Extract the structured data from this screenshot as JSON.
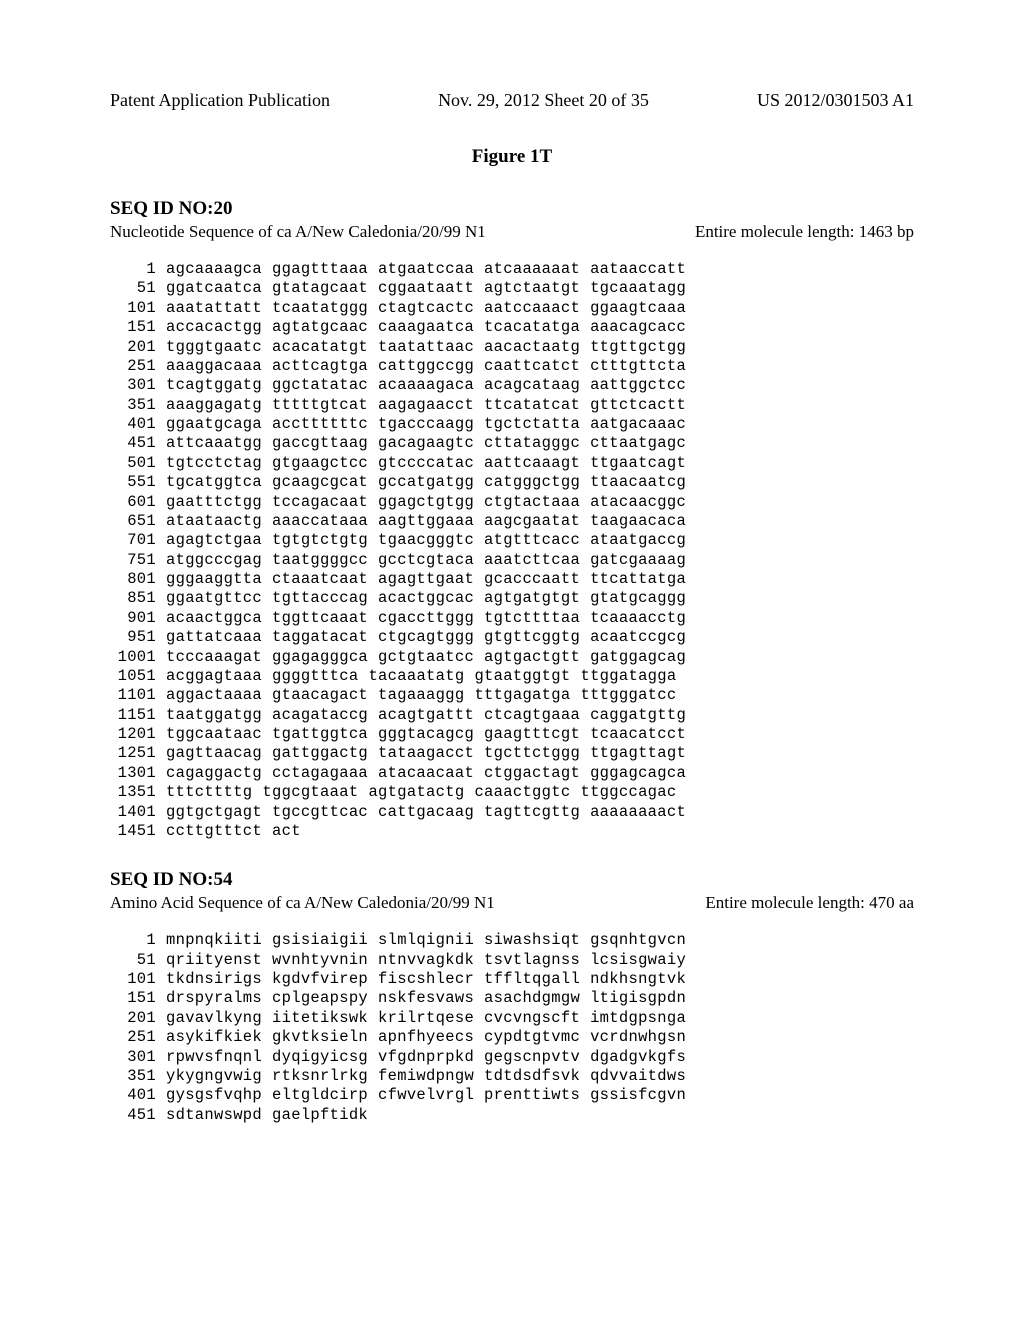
{
  "header": {
    "left": "Patent Application Publication",
    "mid": "Nov. 29, 2012  Sheet 20 of 35",
    "right": "US 2012/0301503 A1"
  },
  "figure_title": "Figure 1T",
  "seq1": {
    "id_header": "SEQ ID NO:20",
    "subheader_left": "Nucleotide Sequence of ca A/New Caledonia/20/99 N1",
    "subheader_right": "Entire molecule length: 1463 bp",
    "lines": [
      {
        "n": "1",
        "c": [
          "agcaaaagca",
          "ggagtttaaa",
          "atgaatccaa",
          "atcaaaaaat",
          "aataaccatt"
        ]
      },
      {
        "n": "51",
        "c": [
          "ggatcaatca",
          "gtatagcaat",
          "cggaataatt",
          "agtctaatgt",
          "tgcaaatagg"
        ]
      },
      {
        "n": "101",
        "c": [
          "aaatattatt",
          "tcaatatggg",
          "ctagtcactc",
          "aatccaaact",
          "ggaagtcaaa"
        ]
      },
      {
        "n": "151",
        "c": [
          "accacactgg",
          "agtatgcaac",
          "caaagaatca",
          "tcacatatga",
          "aaacagcacc"
        ]
      },
      {
        "n": "201",
        "c": [
          "tgggtgaatc",
          "acacatatgt",
          "taatattaac",
          "aacactaatg",
          "ttgttgctgg"
        ]
      },
      {
        "n": "251",
        "c": [
          "aaaggacaaa",
          "acttcagtga",
          "cattggccgg",
          "caattcatct",
          "ctttgttcta"
        ]
      },
      {
        "n": "301",
        "c": [
          "tcagtggatg",
          "ggctatatac",
          "acaaaagaca",
          "acagcataag",
          "aattggctcc"
        ]
      },
      {
        "n": "351",
        "c": [
          "aaaggagatg",
          "tttttgtcat",
          "aagagaacct",
          "ttcatatcat",
          "gttctcactt"
        ]
      },
      {
        "n": "401",
        "c": [
          "ggaatgcaga",
          "accttttttc",
          "tgacccaagg",
          "tgctctatta",
          "aatgacaaac"
        ]
      },
      {
        "n": "451",
        "c": [
          "attcaaatgg",
          "gaccgttaag",
          "gacagaagtc",
          "cttatagggc",
          "cttaatgagc"
        ]
      },
      {
        "n": "501",
        "c": [
          "tgtcctctag",
          "gtgaagctcc",
          "gtccccatac",
          "aattcaaagt",
          "ttgaatcagt"
        ]
      },
      {
        "n": "551",
        "c": [
          "tgcatggtca",
          "gcaagcgcat",
          "gccatgatgg",
          "catgggctgg",
          "ttaacaatcg"
        ]
      },
      {
        "n": "601",
        "c": [
          "gaatttctgg",
          "tccagacaat",
          "ggagctgtgg",
          "ctgtactaaa",
          "atacaacggc"
        ]
      },
      {
        "n": "651",
        "c": [
          "ataataactg",
          "aaaccataaa",
          "aagttggaaa",
          "aagcgaatat",
          "taagaacaca"
        ]
      },
      {
        "n": "701",
        "c": [
          "agagtctgaa",
          "tgtgtctgtg",
          "tgaacgggtc",
          "atgtttcacc",
          "ataatgaccg"
        ]
      },
      {
        "n": "751",
        "c": [
          "atggcccgag",
          "taatggggcc",
          "gcctcgtaca",
          "aaatcttcaa",
          "gatcgaaaag"
        ]
      },
      {
        "n": "801",
        "c": [
          "gggaaggtta",
          "ctaaatcaat",
          "agagttgaat",
          "gcacccaatt",
          "ttcattatga"
        ]
      },
      {
        "n": "851",
        "c": [
          "ggaatgttcc",
          "tgttacccag",
          "acactggcac",
          "agtgatgtgt",
          "gtatgcaggg"
        ]
      },
      {
        "n": "901",
        "c": [
          "acaactggca",
          "tggttcaaat",
          "cgaccttggg",
          "tgtcttttaa",
          "tcaaaacctg"
        ]
      },
      {
        "n": "951",
        "c": [
          "gattatcaaa",
          "taggatacat",
          "ctgcagtggg",
          "gtgttcggtg",
          "acaatccgcg"
        ]
      },
      {
        "n": "1001",
        "c": [
          "tcccaaagat",
          "ggagagggca",
          "gctgtaatcc",
          "agtgactgtt",
          "gatggagcag"
        ]
      },
      {
        "n": "1051",
        "c": [
          "acggagtaaa",
          "ggggtttca",
          "tacaaatatg",
          "gtaatggtgt",
          "ttggatagga"
        ]
      },
      {
        "n": "1101",
        "c": [
          "aggactaaaa",
          "gtaacagact",
          "tagaaaggg",
          "tttgagatga",
          "tttgggatcc"
        ]
      },
      {
        "n": "1151",
        "c": [
          "taatggatgg",
          "acagataccg",
          "acagtgattt",
          "ctcagtgaaa",
          "caggatgttg"
        ]
      },
      {
        "n": "1201",
        "c": [
          "tggcaataac",
          "tgattggtca",
          "gggtacagcg",
          "gaagtttcgt",
          "tcaacatcct"
        ]
      },
      {
        "n": "1251",
        "c": [
          "gagttaacag",
          "gattggactg",
          "tataagacct",
          "tgcttctggg",
          "ttgagttagt"
        ]
      },
      {
        "n": "1301",
        "c": [
          "cagaggactg",
          "cctagagaaa",
          "atacaacaat",
          "ctggactagt",
          "gggagcagca"
        ]
      },
      {
        "n": "1351",
        "c": [
          "tttcttttg",
          "tggcgtaaat",
          "agtgatactg",
          "caaactggtc",
          "ttggccagac"
        ]
      },
      {
        "n": "1401",
        "c": [
          "ggtgctgagt",
          "tgccgttcac",
          "cattgacaag",
          "tagttcgttg",
          "aaaaaaaact"
        ]
      },
      {
        "n": "1451",
        "c": [
          "ccttgtttct",
          "act",
          "",
          "",
          ""
        ]
      }
    ]
  },
  "seq2": {
    "id_header": "SEQ ID NO:54",
    "subheader_left": "Amino Acid Sequence of ca A/New Caledonia/20/99 N1",
    "subheader_right": "Entire molecule length: 470 aa",
    "lines": [
      {
        "n": "1",
        "c": [
          "mnpnqkiiti",
          "gsisiaigii",
          "slmlqignii",
          "siwashsiqt",
          "gsqnhtgvcn"
        ]
      },
      {
        "n": "51",
        "c": [
          "qriityenst",
          "wvnhtyvnin",
          "ntnvvagkdk",
          "tsvtlagnss",
          "lcsisgwaiy"
        ]
      },
      {
        "n": "101",
        "c": [
          "tkdnsirigs",
          "kgdvfvirep",
          "fiscshlecr",
          "tffltqgall",
          "ndkhsngtvk"
        ]
      },
      {
        "n": "151",
        "c": [
          "drspyralms",
          "cplgeapspy",
          "nskfesvaws",
          "asachdgmgw",
          "ltigisgpdn"
        ]
      },
      {
        "n": "201",
        "c": [
          "gavavlkyng",
          "iitetikswk",
          "krilrtqese",
          "cvcvngscft",
          "imtdgpsnga"
        ]
      },
      {
        "n": "251",
        "c": [
          "asykifkiek",
          "gkvtksieln",
          "apnfhyeecs",
          "cypdtgtvmc",
          "vcrdnwhgsn"
        ]
      },
      {
        "n": "301",
        "c": [
          "rpwvsfnqnl",
          "dyqigyicsg",
          "vfgdnprpkd",
          "gegscnpvtv",
          "dgadgvkgfs"
        ]
      },
      {
        "n": "351",
        "c": [
          "ykygngvwig",
          "rtksnrlrkg",
          "femiwdpngw",
          "tdtdsdfsvk",
          "qdvvaitdws"
        ]
      },
      {
        "n": "401",
        "c": [
          "gysgsfvqhp",
          "eltgldcirp",
          "cfwvelvrgl",
          "prenttiwts",
          "gssisfcgvn"
        ]
      },
      {
        "n": "451",
        "c": [
          "sdtanwswpd",
          "gaelpftidk",
          "",
          "",
          ""
        ]
      }
    ]
  }
}
